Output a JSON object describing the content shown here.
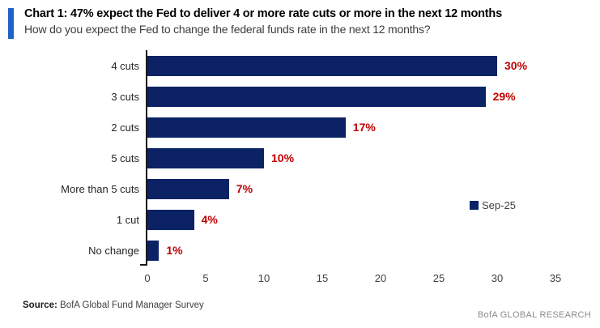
{
  "header": {
    "title": "Chart 1: 47% expect the Fed to deliver 4 or more rate cuts or more in the next 12 months",
    "subtitle": "How do you expect the Fed to change the federal funds rate in the next 12 months?",
    "accent_color": "#1E62C6"
  },
  "chart_data": {
    "type": "bar",
    "orientation": "horizontal",
    "title": "Chart 1: 47% expect the Fed to deliver 4 or more rate cuts or more in the next 12 months",
    "subtitle": "How do you expect the Fed to change the federal funds rate in the next 12 months?",
    "categories": [
      "4 cuts",
      "3 cuts",
      "2 cuts",
      "5 cuts",
      "More than 5 cuts",
      "1 cut",
      "No change"
    ],
    "values": [
      30,
      29,
      17,
      10,
      7,
      4,
      1
    ],
    "value_labels": [
      "30%",
      "29%",
      "17%",
      "10%",
      "7%",
      "4%",
      "1%"
    ],
    "series": [
      {
        "name": "Sep-25",
        "values": [
          30,
          29,
          17,
          10,
          7,
          4,
          1
        ]
      }
    ],
    "legend": [
      "Sep-25"
    ],
    "legend_position": "middle-right",
    "x_ticks": [
      "0",
      "5",
      "10",
      "15",
      "20",
      "25",
      "30",
      "35"
    ],
    "xlim": [
      0,
      35
    ],
    "grid": false,
    "bar_color": "#0B2265",
    "value_label_color": "#C00000",
    "axis_color": "#1a1a1a"
  },
  "footer": {
    "source_label": "Source:",
    "source_text": "BofA Global Fund Manager Survey",
    "brand": "BofA GLOBAL RESEARCH"
  }
}
